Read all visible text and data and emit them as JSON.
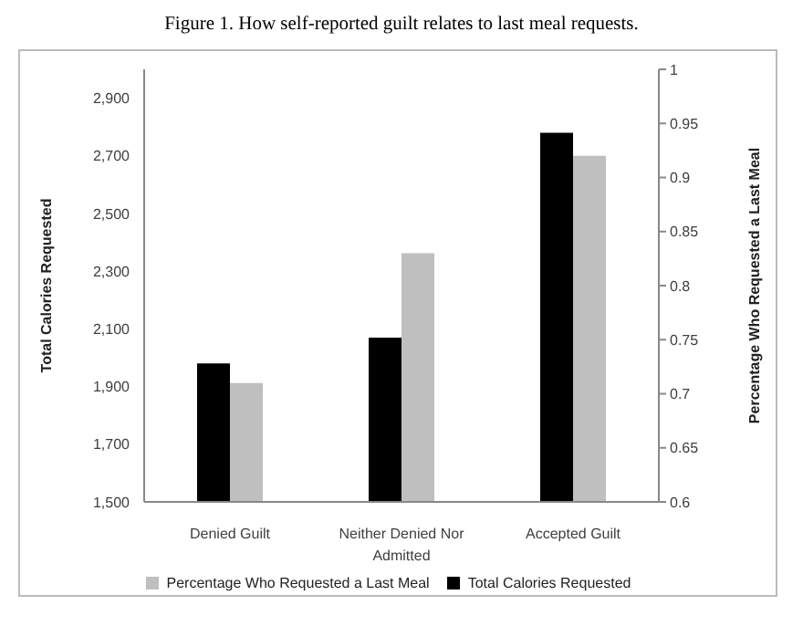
{
  "chart_data": {
    "type": "bar",
    "title": "Figure 1. How self-reported guilt relates to last meal requests.",
    "categories": [
      "Denied Guilt",
      "Neither Denied Nor Admitted",
      "Accepted Guilt"
    ],
    "series": [
      {
        "name": "Total Calories Requested",
        "color": "#000000",
        "values": [
          1980,
          2070,
          2780
        ]
      },
      {
        "name": "Percentage Who Requested a Last Meal",
        "color": "#bfbfbf",
        "values": [
          0.71,
          0.83,
          0.92
        ],
        "axis": "y2"
      }
    ],
    "ylabel": "Total Calories Requested",
    "y2label": "Percentage Who Requested a Last Meal",
    "ylim": [
      1500,
      3000
    ],
    "yticks": [
      {
        "value": 1500,
        "label": "1,500"
      },
      {
        "value": 1700,
        "label": "1,700"
      },
      {
        "value": 1900,
        "label": "1,900"
      },
      {
        "value": 2100,
        "label": "2,100"
      },
      {
        "value": 2300,
        "label": "2,300"
      },
      {
        "value": 2500,
        "label": "2,500"
      },
      {
        "value": 2700,
        "label": "2,700"
      },
      {
        "value": 2900,
        "label": "2,900"
      }
    ],
    "y2lim": [
      0.6,
      1
    ],
    "y2ticks": [
      0.6,
      0.65,
      0.7,
      0.75,
      0.8,
      0.85,
      0.9,
      0.95,
      1
    ],
    "legend": "bottom"
  }
}
